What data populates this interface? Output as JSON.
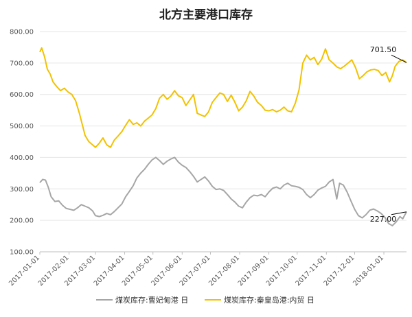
{
  "chart_data": {
    "type": "line",
    "title": "北方主要港口库存",
    "xlabel": "",
    "ylabel": "",
    "ylim": [
      100,
      800
    ],
    "y_ticks": [
      "100.00",
      "200.00",
      "300.00",
      "400.00",
      "500.00",
      "600.00",
      "700.00",
      "800.00"
    ],
    "x_ticks": [
      "2017-01-01",
      "2017-02-01",
      "2017-03-01",
      "2017-04-01",
      "2017-05-01",
      "2017-06-01",
      "2017-07-01",
      "2017-08-01",
      "2017-09-01",
      "2017-10-01",
      "2017-11-01",
      "2017-12-01",
      "2018-01-01"
    ],
    "x_range": [
      "2017-01-01",
      "2018-01-25"
    ],
    "grid": "horizontal",
    "legend_position": "bottom",
    "series": [
      {
        "name": "煤炭库存:曹妃甸港 日",
        "color": "#a6a6a6",
        "end_label": "227.00",
        "points": [
          [
            "2017-01-01",
            320
          ],
          [
            "2017-01-04",
            330
          ],
          [
            "2017-01-07",
            328
          ],
          [
            "2017-01-10",
            305
          ],
          [
            "2017-01-13",
            275
          ],
          [
            "2017-01-17",
            260
          ],
          [
            "2017-01-21",
            262
          ],
          [
            "2017-01-25",
            248
          ],
          [
            "2017-01-29",
            238
          ],
          [
            "2017-02-02",
            235
          ],
          [
            "2017-02-06",
            232
          ],
          [
            "2017-02-10",
            240
          ],
          [
            "2017-02-14",
            250
          ],
          [
            "2017-02-18",
            245
          ],
          [
            "2017-02-22",
            240
          ],
          [
            "2017-02-26",
            230
          ],
          [
            "2017-03-01",
            215
          ],
          [
            "2017-03-05",
            212
          ],
          [
            "2017-03-09",
            216
          ],
          [
            "2017-03-13",
            222
          ],
          [
            "2017-03-17",
            218
          ],
          [
            "2017-03-21",
            228
          ],
          [
            "2017-03-25",
            240
          ],
          [
            "2017-03-29",
            252
          ],
          [
            "2017-04-02",
            275
          ],
          [
            "2017-04-06",
            292
          ],
          [
            "2017-04-10",
            310
          ],
          [
            "2017-04-14",
            335
          ],
          [
            "2017-04-18",
            350
          ],
          [
            "2017-04-22",
            362
          ],
          [
            "2017-04-26",
            378
          ],
          [
            "2017-04-30",
            392
          ],
          [
            "2017-05-04",
            400
          ],
          [
            "2017-05-08",
            390
          ],
          [
            "2017-05-12",
            378
          ],
          [
            "2017-05-16",
            388
          ],
          [
            "2017-05-20",
            395
          ],
          [
            "2017-05-24",
            400
          ],
          [
            "2017-05-28",
            385
          ],
          [
            "2017-06-01",
            375
          ],
          [
            "2017-06-05",
            368
          ],
          [
            "2017-06-09",
            355
          ],
          [
            "2017-06-13",
            340
          ],
          [
            "2017-06-17",
            322
          ],
          [
            "2017-06-21",
            330
          ],
          [
            "2017-06-25",
            338
          ],
          [
            "2017-06-29",
            325
          ],
          [
            "2017-07-03",
            308
          ],
          [
            "2017-07-07",
            298
          ],
          [
            "2017-07-11",
            300
          ],
          [
            "2017-07-15",
            295
          ],
          [
            "2017-07-19",
            282
          ],
          [
            "2017-07-23",
            268
          ],
          [
            "2017-07-27",
            258
          ],
          [
            "2017-07-31",
            245
          ],
          [
            "2017-08-04",
            240
          ],
          [
            "2017-08-08",
            258
          ],
          [
            "2017-08-12",
            272
          ],
          [
            "2017-08-16",
            280
          ],
          [
            "2017-08-20",
            278
          ],
          [
            "2017-08-24",
            282
          ],
          [
            "2017-08-28",
            275
          ],
          [
            "2017-09-01",
            290
          ],
          [
            "2017-09-05",
            302
          ],
          [
            "2017-09-09",
            306
          ],
          [
            "2017-09-13",
            300
          ],
          [
            "2017-09-17",
            312
          ],
          [
            "2017-09-21",
            318
          ],
          [
            "2017-09-25",
            310
          ],
          [
            "2017-09-29",
            308
          ],
          [
            "2017-10-03",
            305
          ],
          [
            "2017-10-07",
            298
          ],
          [
            "2017-10-11",
            282
          ],
          [
            "2017-10-15",
            272
          ],
          [
            "2017-10-19",
            282
          ],
          [
            "2017-10-23",
            296
          ],
          [
            "2017-10-27",
            303
          ],
          [
            "2017-10-31",
            308
          ],
          [
            "2017-11-04",
            322
          ],
          [
            "2017-11-08",
            330
          ],
          [
            "2017-11-12",
            268
          ],
          [
            "2017-11-15",
            318
          ],
          [
            "2017-11-19",
            312
          ],
          [
            "2017-11-23",
            290
          ],
          [
            "2017-11-27",
            262
          ],
          [
            "2017-12-01",
            235
          ],
          [
            "2017-12-05",
            215
          ],
          [
            "2017-12-09",
            208
          ],
          [
            "2017-12-13",
            218
          ],
          [
            "2017-12-17",
            232
          ],
          [
            "2017-12-21",
            236
          ],
          [
            "2017-12-25",
            230
          ],
          [
            "2017-12-29",
            222
          ],
          [
            "2018-01-02",
            210
          ],
          [
            "2018-01-06",
            190
          ],
          [
            "2018-01-10",
            183
          ],
          [
            "2018-01-14",
            195
          ],
          [
            "2018-01-18",
            212
          ],
          [
            "2018-01-21",
            205
          ],
          [
            "2018-01-25",
            227
          ]
        ]
      },
      {
        "name": "煤炭库存:秦皇岛港:内贸 日",
        "color": "#f2c200",
        "end_label": "701.50",
        "points": [
          [
            "2017-01-01",
            735
          ],
          [
            "2017-01-03",
            748
          ],
          [
            "2017-01-06",
            720
          ],
          [
            "2017-01-09",
            680
          ],
          [
            "2017-01-12",
            665
          ],
          [
            "2017-01-15",
            640
          ],
          [
            "2017-01-19",
            625
          ],
          [
            "2017-01-23",
            612
          ],
          [
            "2017-01-27",
            620
          ],
          [
            "2017-01-31",
            608
          ],
          [
            "2017-02-04",
            600
          ],
          [
            "2017-02-08",
            580
          ],
          [
            "2017-02-12",
            540
          ],
          [
            "2017-02-15",
            505
          ],
          [
            "2017-02-18",
            470
          ],
          [
            "2017-02-22",
            450
          ],
          [
            "2017-02-26",
            440
          ],
          [
            "2017-03-01",
            432
          ],
          [
            "2017-03-05",
            445
          ],
          [
            "2017-03-09",
            462
          ],
          [
            "2017-03-13",
            440
          ],
          [
            "2017-03-17",
            432
          ],
          [
            "2017-03-21",
            455
          ],
          [
            "2017-03-25",
            468
          ],
          [
            "2017-03-29",
            482
          ],
          [
            "2017-04-02",
            502
          ],
          [
            "2017-04-06",
            520
          ],
          [
            "2017-04-10",
            505
          ],
          [
            "2017-04-14",
            510
          ],
          [
            "2017-04-18",
            500
          ],
          [
            "2017-04-22",
            515
          ],
          [
            "2017-04-26",
            525
          ],
          [
            "2017-04-30",
            535
          ],
          [
            "2017-05-04",
            555
          ],
          [
            "2017-05-08",
            588
          ],
          [
            "2017-05-12",
            600
          ],
          [
            "2017-05-16",
            585
          ],
          [
            "2017-05-20",
            595
          ],
          [
            "2017-05-24",
            612
          ],
          [
            "2017-05-28",
            596
          ],
          [
            "2017-06-01",
            590
          ],
          [
            "2017-06-05",
            565
          ],
          [
            "2017-06-09",
            582
          ],
          [
            "2017-06-13",
            600
          ],
          [
            "2017-06-17",
            540
          ],
          [
            "2017-06-21",
            535
          ],
          [
            "2017-06-25",
            530
          ],
          [
            "2017-06-29",
            545
          ],
          [
            "2017-07-03",
            575
          ],
          [
            "2017-07-07",
            590
          ],
          [
            "2017-07-11",
            605
          ],
          [
            "2017-07-15",
            600
          ],
          [
            "2017-07-19",
            578
          ],
          [
            "2017-07-23",
            598
          ],
          [
            "2017-07-27",
            575
          ],
          [
            "2017-07-31",
            548
          ],
          [
            "2017-08-04",
            560
          ],
          [
            "2017-08-08",
            580
          ],
          [
            "2017-08-12",
            610
          ],
          [
            "2017-08-16",
            595
          ],
          [
            "2017-08-20",
            575
          ],
          [
            "2017-08-24",
            565
          ],
          [
            "2017-08-28",
            550
          ],
          [
            "2017-09-01",
            548
          ],
          [
            "2017-09-05",
            552
          ],
          [
            "2017-09-09",
            545
          ],
          [
            "2017-09-13",
            550
          ],
          [
            "2017-09-17",
            560
          ],
          [
            "2017-09-21",
            548
          ],
          [
            "2017-09-25",
            545
          ],
          [
            "2017-09-29",
            572
          ],
          [
            "2017-10-03",
            615
          ],
          [
            "2017-10-07",
            700
          ],
          [
            "2017-10-11",
            725
          ],
          [
            "2017-10-15",
            710
          ],
          [
            "2017-10-19",
            718
          ],
          [
            "2017-10-23",
            695
          ],
          [
            "2017-10-27",
            712
          ],
          [
            "2017-10-31",
            745
          ],
          [
            "2017-11-04",
            710
          ],
          [
            "2017-11-08",
            700
          ],
          [
            "2017-11-12",
            688
          ],
          [
            "2017-11-16",
            682
          ],
          [
            "2017-11-20",
            690
          ],
          [
            "2017-11-24",
            700
          ],
          [
            "2017-11-28",
            710
          ],
          [
            "2017-12-02",
            685
          ],
          [
            "2017-12-06",
            650
          ],
          [
            "2017-12-10",
            660
          ],
          [
            "2017-12-14",
            672
          ],
          [
            "2017-12-18",
            678
          ],
          [
            "2017-12-22",
            680
          ],
          [
            "2017-12-26",
            676
          ],
          [
            "2017-12-30",
            660
          ],
          [
            "2018-01-03",
            670
          ],
          [
            "2018-01-07",
            640
          ],
          [
            "2018-01-10",
            660
          ],
          [
            "2018-01-13",
            690
          ],
          [
            "2018-01-17",
            705
          ],
          [
            "2018-01-21",
            710
          ],
          [
            "2018-01-25",
            701.5
          ]
        ]
      }
    ]
  }
}
